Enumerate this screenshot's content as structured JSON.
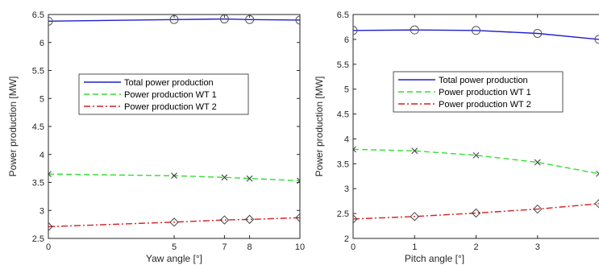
{
  "chart_data": [
    {
      "type": "line",
      "title": "",
      "xlabel": "Yaw angle [°]",
      "ylabel": "Power production [MW]",
      "xlim": [
        0,
        10
      ],
      "ylim": [
        2.5,
        6.5
      ],
      "xticks": [
        0,
        5,
        7,
        8,
        10
      ],
      "yticks": [
        2.5,
        3,
        3.5,
        4,
        4.5,
        5,
        5.5,
        6,
        6.5
      ],
      "grid": false,
      "legend": "center",
      "x": [
        0,
        5,
        7,
        8,
        10
      ],
      "series": [
        {
          "name": "Total power production",
          "color": "#1f1fcf",
          "dash": "solid",
          "marker": "circle",
          "values": [
            6.38,
            6.41,
            6.42,
            6.41,
            6.4
          ]
        },
        {
          "name": "Power production WT 1",
          "color": "#33dd33",
          "dash": "dashed",
          "marker": "x",
          "values": [
            3.65,
            3.62,
            3.59,
            3.57,
            3.53
          ]
        },
        {
          "name": "Power production WT 2",
          "color": "#d42020",
          "dash": "dashdot",
          "marker": "diamond",
          "values": [
            2.71,
            2.79,
            2.83,
            2.84,
            2.87
          ]
        }
      ]
    },
    {
      "type": "line",
      "title": "",
      "xlabel": "Pitch angle [°]",
      "ylabel": "Power production [MW]",
      "xlim": [
        0,
        4
      ],
      "ylim": [
        2,
        6.5
      ],
      "xticks": [
        0,
        1,
        2,
        3
      ],
      "yticks": [
        2,
        2.5,
        3,
        3.5,
        4,
        4.5,
        5,
        5.5,
        6,
        6.5
      ],
      "grid": false,
      "legend": "center",
      "x": [
        0,
        1,
        2,
        3,
        4
      ],
      "series": [
        {
          "name": "Total power production",
          "color": "#1f1fcf",
          "dash": "solid",
          "marker": "circle",
          "values": [
            6.18,
            6.19,
            6.18,
            6.12,
            6.0
          ]
        },
        {
          "name": "Power production WT 1",
          "color": "#33dd33",
          "dash": "dashed",
          "marker": "x",
          "values": [
            3.79,
            3.76,
            3.67,
            3.53,
            3.3
          ]
        },
        {
          "name": "Power production WT 2",
          "color": "#d42020",
          "dash": "dashdot",
          "marker": "diamond",
          "values": [
            2.39,
            2.44,
            2.51,
            2.59,
            2.7
          ]
        }
      ]
    }
  ]
}
